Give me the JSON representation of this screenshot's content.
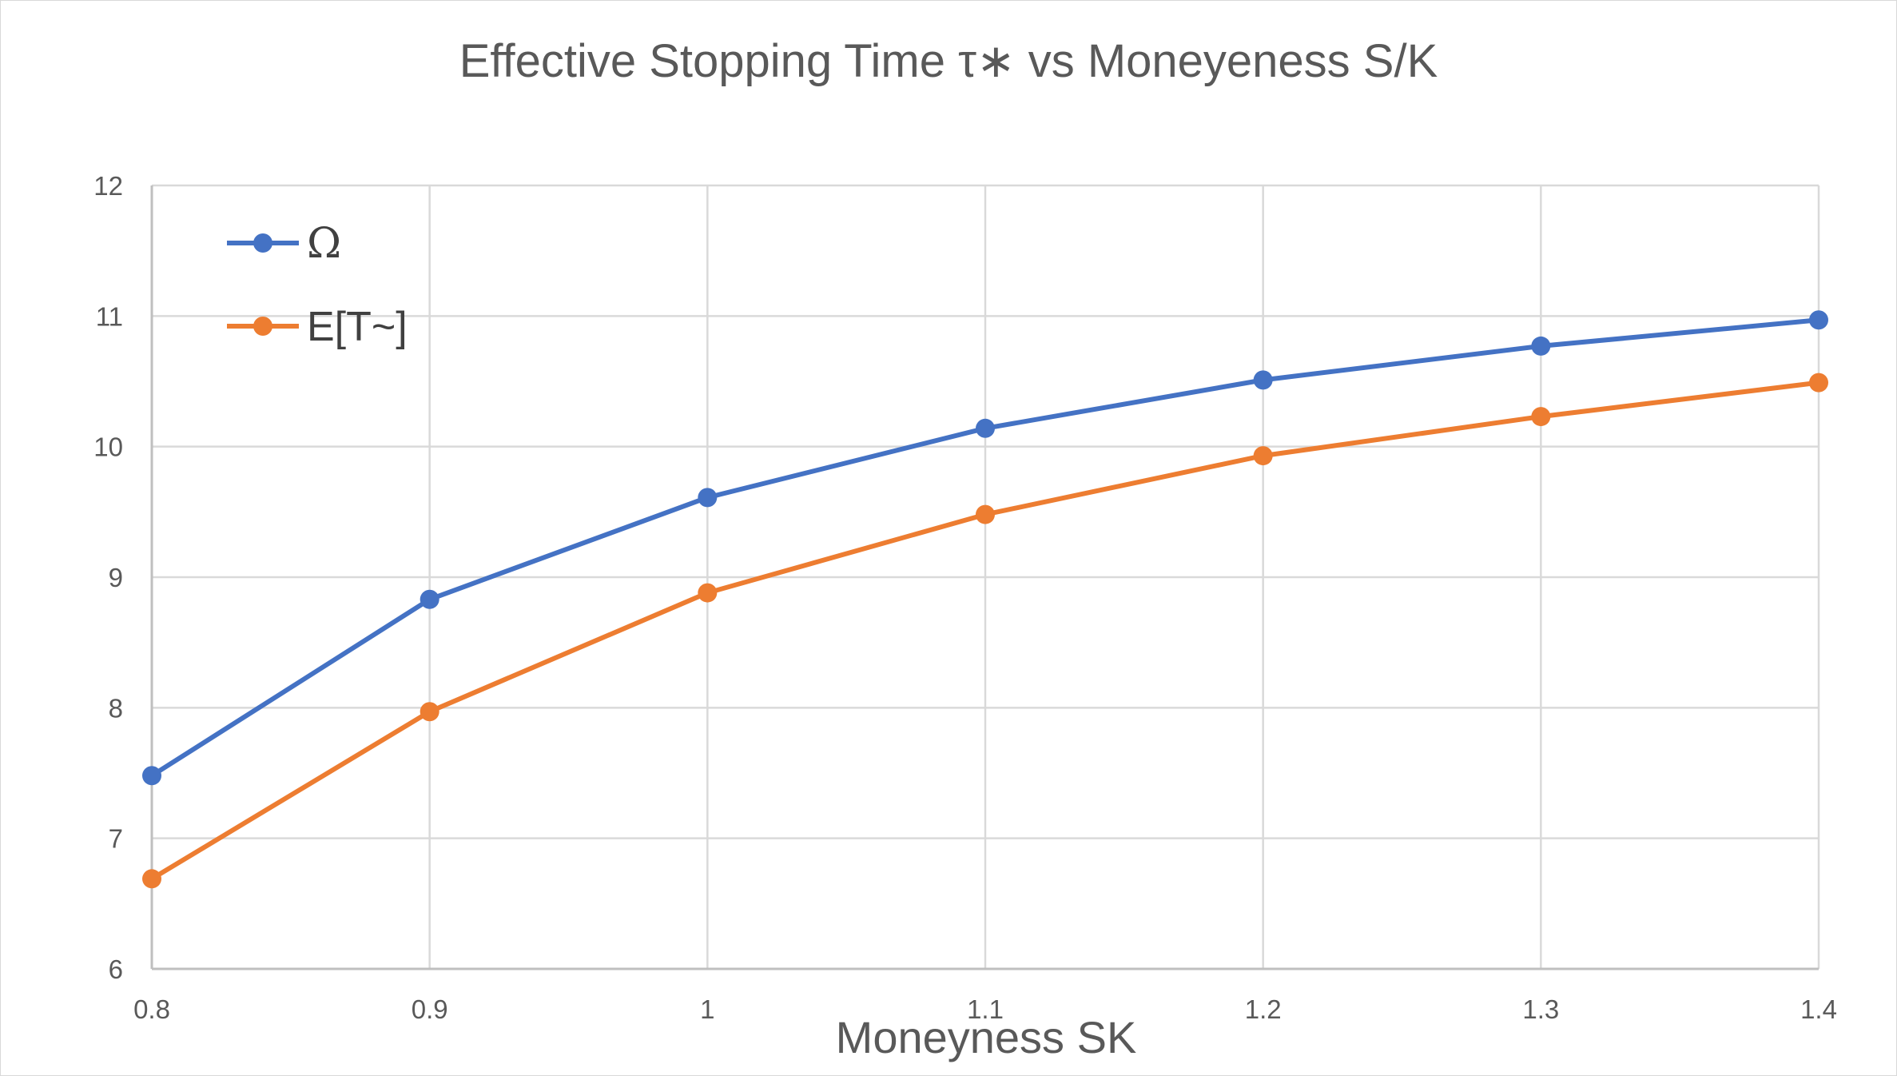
{
  "chart_data": {
    "type": "line",
    "title": "Effective Stopping Time τ∗ vs Moneyeness S/K",
    "xlabel": "Moneyness SK",
    "ylabel": "",
    "x": [
      0.8,
      0.9,
      1,
      1.1,
      1.2,
      1.3,
      1.4
    ],
    "x_tick_labels": [
      "0.8",
      "0.9",
      "1",
      "1.1",
      "1.2",
      "1.3",
      "1.4"
    ],
    "y_tick_labels": [
      "6",
      "7",
      "8",
      "9",
      "10",
      "11",
      "12"
    ],
    "xlim": [
      0.8,
      1.4
    ],
    "ylim": [
      6,
      12
    ],
    "grid": true,
    "legend_position": "top-left",
    "series": [
      {
        "name": "Ω",
        "color": "#4472c4",
        "values": [
          7.48,
          8.83,
          9.61,
          10.14,
          10.51,
          10.77,
          10.97
        ]
      },
      {
        "name": "E[T~]",
        "color": "#ed7d31",
        "values": [
          6.69,
          7.97,
          8.88,
          9.48,
          9.93,
          10.23,
          10.49
        ]
      }
    ]
  }
}
